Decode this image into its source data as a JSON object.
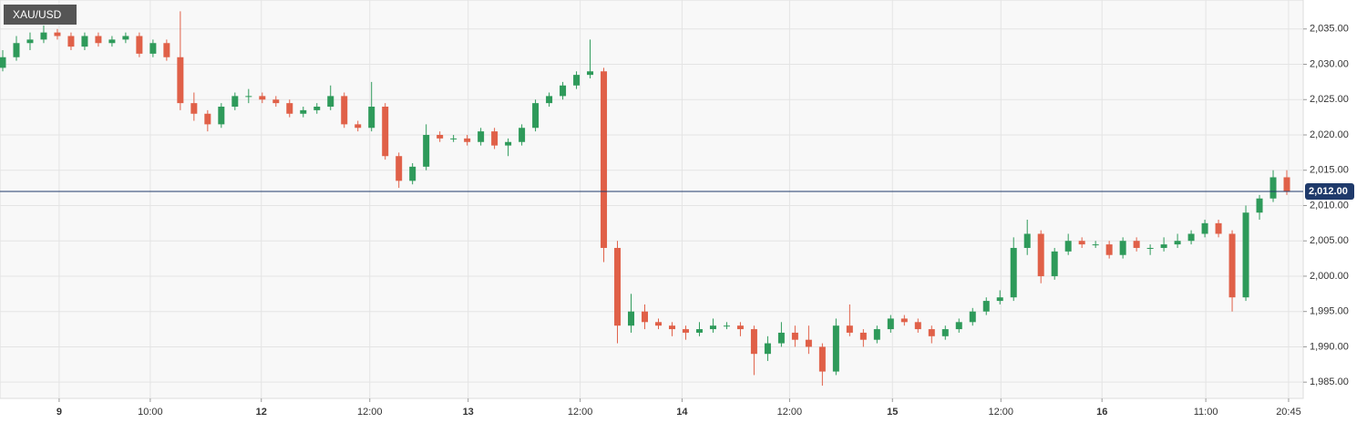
{
  "chart_data": {
    "type": "candlestick",
    "title": "XAU/USD",
    "up_color": "#2e9a5a",
    "down_color": "#e06048",
    "price_line_color": "#1f3a6b",
    "last_price": {
      "value": 2012,
      "label": "2,012.00"
    },
    "xlim": [
      -0.2,
      95.2
    ],
    "ylim": [
      1982.7,
      2039.1
    ],
    "grid": true,
    "yticks": [
      {
        "value": 1985,
        "label": "1,985.00"
      },
      {
        "value": 1990,
        "label": "1,990.00"
      },
      {
        "value": 1995,
        "label": "1,995.00"
      },
      {
        "value": 2000,
        "label": "2,000.00"
      },
      {
        "value": 2005,
        "label": "2,005.00"
      },
      {
        "value": 2010,
        "label": "2,010.00"
      },
      {
        "value": 2015,
        "label": "2,015.00"
      },
      {
        "value": 2020,
        "label": "2,020.00"
      },
      {
        "value": 2025,
        "label": "2,025.00"
      },
      {
        "value": 2030,
        "label": "2,030.00"
      },
      {
        "value": 2035,
        "label": "2,035.00"
      }
    ],
    "xticks": [
      {
        "value": 4.13,
        "label": "9"
      },
      {
        "value": 10.8,
        "label": "10:00"
      },
      {
        "value": 18.93,
        "label": "12"
      },
      {
        "value": 26.87,
        "label": "12:00"
      },
      {
        "value": 34.07,
        "label": "13"
      },
      {
        "value": 42.27,
        "label": "12:00"
      },
      {
        "value": 49.73,
        "label": "14"
      },
      {
        "value": 57.6,
        "label": "12:00"
      },
      {
        "value": 65.13,
        "label": "15"
      },
      {
        "value": 73.07,
        "label": "12:00"
      },
      {
        "value": 80.47,
        "label": "16"
      },
      {
        "value": 88.07,
        "label": "11:00"
      },
      {
        "value": 94.13,
        "label": "20:45"
      }
    ],
    "open": [
      2029.5,
      2031,
      2033,
      2033.5,
      2034.5,
      2034,
      2032.5,
      2034,
      2033,
      2033.5,
      2034,
      2031.5,
      2033,
      2031,
      2024.5,
      2023,
      2021.5,
      2024,
      2025.5,
      2025.5,
      2025,
      2024.5,
      2023,
      2023.5,
      2024,
      2025.5,
      2021.5,
      2021,
      2024,
      2017,
      2013.5,
      2015.5,
      2020,
      2019.5,
      2019.5,
      2019,
      2020.5,
      2018.5,
      2019,
      2021,
      2024.5,
      2025.5,
      2027,
      2028.5,
      2029,
      2004,
      1993,
      1995,
      1993.5,
      1993,
      1992.5,
      1992,
      1992.5,
      1993,
      1993,
      1992.5,
      1989,
      1990.5,
      1992,
      1991,
      1990,
      1986.5,
      1993,
      1992,
      1991,
      1992.5,
      1994,
      1993.5,
      1992.5,
      1991.5,
      1992.5,
      1993.5,
      1995,
      1996.5,
      1997,
      2004,
      2006,
      2000,
      2003.5,
      2005,
      2004.5,
      2004.5,
      2003,
      2005,
      2004,
      2004,
      2004.5,
      2005,
      2006,
      2007.5,
      2006,
      1997,
      2009,
      2011,
      2014
    ],
    "high": [
      2032,
      2034,
      2034.5,
      2035.5,
      2035,
      2034.5,
      2034.5,
      2034.5,
      2034,
      2034.5,
      2034.5,
      2033.5,
      2033.5,
      2037.5,
      2026,
      2023.5,
      2024.5,
      2026,
      2026.5,
      2026,
      2025.5,
      2025,
      2024,
      2024.5,
      2027,
      2026,
      2022,
      2027.5,
      2024.5,
      2017.5,
      2016,
      2021.5,
      2020.5,
      2020,
      2020,
      2021,
      2021,
      2019.5,
      2021.5,
      2025,
      2026,
      2027.5,
      2029,
      2033.5,
      2029.5,
      2005,
      1997.5,
      1996,
      1994,
      1993.5,
      1993,
      1993.5,
      1994,
      1993.5,
      1993.5,
      1993,
      1991.5,
      1993.5,
      1993,
      1993,
      1990.5,
      1994,
      1996,
      1992.5,
      1993,
      1994.5,
      1994.5,
      1994,
      1993,
      1993,
      1994,
      1995.5,
      1997,
      1998,
      2005.5,
      2008,
      2006.5,
      2004,
      2006,
      2005.5,
      2005,
      2005,
      2005.5,
      2005.5,
      2004.5,
      2005.5,
      2006,
      2006.5,
      2008,
      2008,
      2006.5,
      2010,
      2011.5,
      2015,
      2015
    ],
    "low": [
      2029,
      2030.5,
      2032,
      2033,
      2033.5,
      2032,
      2032,
      2032.5,
      2032.5,
      2033,
      2031,
      2031,
      2030.5,
      2023.5,
      2022,
      2020.5,
      2021,
      2023.5,
      2024.5,
      2024.5,
      2024,
      2022.5,
      2022.5,
      2023,
      2023.5,
      2021,
      2020.5,
      2020.5,
      2016.5,
      2012.5,
      2013,
      2015,
      2019,
      2019,
      2018.5,
      2018.5,
      2018,
      2017,
      2018.5,
      2020.5,
      2024,
      2025,
      2026.5,
      2028,
      2002,
      1990.5,
      1992,
      1992.5,
      1992.5,
      1991.5,
      1991,
      1991.5,
      1992,
      1992.5,
      1991.5,
      1986,
      1988,
      1990,
      1990,
      1989,
      1984.5,
      1986,
      1991.5,
      1990,
      1990.5,
      1992,
      1993,
      1992,
      1990.5,
      1991,
      1992,
      1993,
      1994.5,
      1996,
      1996.5,
      2003,
      1999,
      1999.5,
      2003,
      2004,
      2004,
      2002.5,
      2002.5,
      2003.5,
      2003,
      2003.5,
      2004,
      2004.5,
      2005.5,
      2005.5,
      1995,
      1996.5,
      2008,
      2010.5,
      2011.5
    ],
    "close": [
      2031,
      2033,
      2033.5,
      2034.5,
      2034,
      2032.5,
      2034,
      2033,
      2033.5,
      2034,
      2031.5,
      2033,
      2031,
      2024.5,
      2023,
      2021.5,
      2024,
      2025.5,
      2025.5,
      2025,
      2024.5,
      2023,
      2023.5,
      2024,
      2025.5,
      2021.5,
      2021,
      2024,
      2017,
      2013.5,
      2015.5,
      2020,
      2019.5,
      2019.5,
      2019,
      2020.5,
      2018.5,
      2019,
      2021,
      2024.5,
      2025.5,
      2027,
      2028.5,
      2029,
      2004,
      1993,
      1995,
      1993.5,
      1993,
      1992.5,
      1992,
      1992.5,
      1993,
      1993,
      1992.5,
      1989,
      1990.5,
      1992,
      1991,
      1990,
      1986.5,
      1993,
      1992,
      1991,
      1992.5,
      1994,
      1993.5,
      1992.5,
      1991.5,
      1992.5,
      1993.5,
      1995,
      1996.5,
      1997,
      2004,
      2006,
      2000,
      2003.5,
      2005,
      2004.5,
      2004.5,
      2003,
      2005,
      2004,
      2004,
      2004.5,
      2005,
      2006,
      2007.5,
      2006,
      1997,
      2009,
      2011,
      2014,
      2012
    ]
  }
}
